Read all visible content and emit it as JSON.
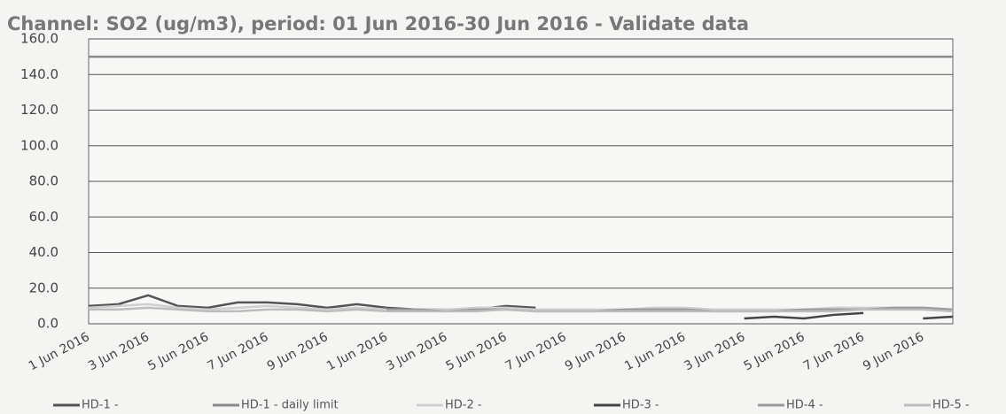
{
  "chart_data": {
    "type": "line",
    "title": "Channel: SO2 (ug/m3), period: 01 Jun 2016-30 Jun 2016 - Validate data",
    "categories": [
      "1 Jun 2016",
      null,
      "3 Jun 2016",
      null,
      "5 Jun 2016",
      null,
      "7 Jun 2016",
      null,
      "9 Jun 2016",
      null,
      "1 Jun 2016",
      null,
      "3 Jun 2016",
      null,
      "5 Jun 2016",
      null,
      "7 Jun 2016",
      null,
      "9 Jun 2016",
      null,
      "1 Jun 2016",
      null,
      "3 Jun 2016",
      null,
      "5 Jun 2016",
      null,
      "7 Jun 2016",
      null,
      "9 Jun 2016",
      null
    ],
    "series": [
      {
        "name": "HD-1 -",
        "color": "#555555",
        "values": [
          10,
          11,
          16,
          10,
          9,
          12,
          12,
          11,
          9,
          11,
          9,
          8,
          8,
          8,
          10,
          9,
          null,
          null,
          null,
          null,
          null,
          null,
          null,
          null,
          null,
          null,
          null,
          null,
          null,
          null
        ]
      },
      {
        "name": "HD-1 - daily limit",
        "color": "#8a8a8a",
        "values": [
          150,
          150,
          150,
          150,
          150,
          150,
          150,
          150,
          150,
          150,
          150,
          150,
          150,
          150,
          150,
          150,
          150,
          150,
          150,
          150,
          150,
          150,
          150,
          150,
          150,
          150,
          150,
          150,
          150,
          150
        ]
      },
      {
        "name": "HD-2 -",
        "color": "#cfcfcf",
        "values": [
          9,
          10,
          11,
          9,
          8,
          9,
          10,
          9,
          8,
          9,
          8,
          8,
          8,
          9,
          9,
          8,
          8,
          8,
          8,
          9,
          9,
          8,
          8,
          8,
          8,
          9,
          9,
          9,
          8,
          8
        ]
      },
      {
        "name": "HD-3 -",
        "color": "#444444",
        "values": [
          null,
          null,
          null,
          null,
          null,
          null,
          null,
          null,
          null,
          null,
          null,
          null,
          null,
          null,
          null,
          null,
          null,
          null,
          null,
          null,
          null,
          null,
          3,
          4,
          3,
          5,
          6,
          null,
          3,
          4
        ]
      },
      {
        "name": "HD-4 -",
        "color": "#9a9a9a",
        "values": [
          null,
          null,
          null,
          null,
          null,
          null,
          null,
          null,
          null,
          null,
          8,
          8,
          7,
          8,
          8,
          7,
          7,
          7,
          8,
          8,
          8,
          7,
          7,
          7,
          8,
          8,
          8,
          9,
          9,
          8
        ]
      },
      {
        "name": "HD-5 -",
        "color": "#bdbdbd",
        "values": [
          8,
          8,
          9,
          8,
          7,
          7,
          8,
          8,
          7,
          8,
          7,
          7,
          7,
          7,
          8,
          7,
          7,
          7,
          7,
          7,
          7,
          7,
          7,
          7,
          7,
          7,
          8,
          8,
          8,
          7
        ]
      }
    ],
    "ylim": [
      0,
      160
    ],
    "yticks": [
      {
        "value": 0,
        "label": "0.0"
      },
      {
        "value": 20,
        "label": "20.0"
      },
      {
        "value": 40,
        "label": "40.0"
      },
      {
        "value": 60,
        "label": "60.0"
      },
      {
        "value": 80,
        "label": "80.0"
      },
      {
        "value": 100,
        "label": "100.0"
      },
      {
        "value": 120,
        "label": "120.0"
      },
      {
        "value": 140,
        "label": "140.0"
      },
      {
        "value": 160,
        "label": "160.0"
      }
    ],
    "grid": true,
    "legend": "bottom"
  }
}
